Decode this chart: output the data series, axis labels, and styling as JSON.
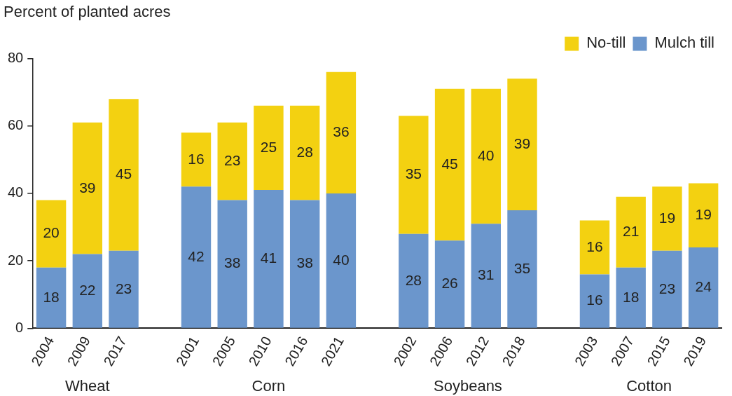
{
  "chart_data": {
    "type": "bar",
    "ylabel": "Percent of planted acres",
    "categories": [
      "2004",
      "2009",
      "2017",
      null,
      "2001",
      "2005",
      "2010",
      "2016",
      "2021",
      null,
      "2002",
      "2006",
      "2012",
      "2018",
      null,
      "2003",
      "2007",
      "2015",
      "2019"
    ],
    "series": [
      {
        "name": "Mulch till",
        "color": "#6b96cc",
        "values": [
          18,
          22,
          23,
          null,
          42,
          38,
          41,
          38,
          40,
          null,
          28,
          26,
          31,
          35,
          null,
          16,
          18,
          23,
          24
        ]
      },
      {
        "name": "No-till",
        "color": "#f3d111",
        "values": [
          20,
          39,
          45,
          null,
          16,
          23,
          25,
          28,
          36,
          null,
          35,
          45,
          40,
          39,
          null,
          16,
          21,
          19,
          19
        ]
      }
    ],
    "stacked": true,
    "ylim": [
      0,
      80
    ],
    "yticks": [
      0,
      20,
      40,
      60,
      80
    ],
    "grid": false,
    "legend": "top right",
    "data_labels": true,
    "annotations": [
      "Wheat",
      "Corn",
      "Soybeans",
      "Cotton"
    ]
  }
}
